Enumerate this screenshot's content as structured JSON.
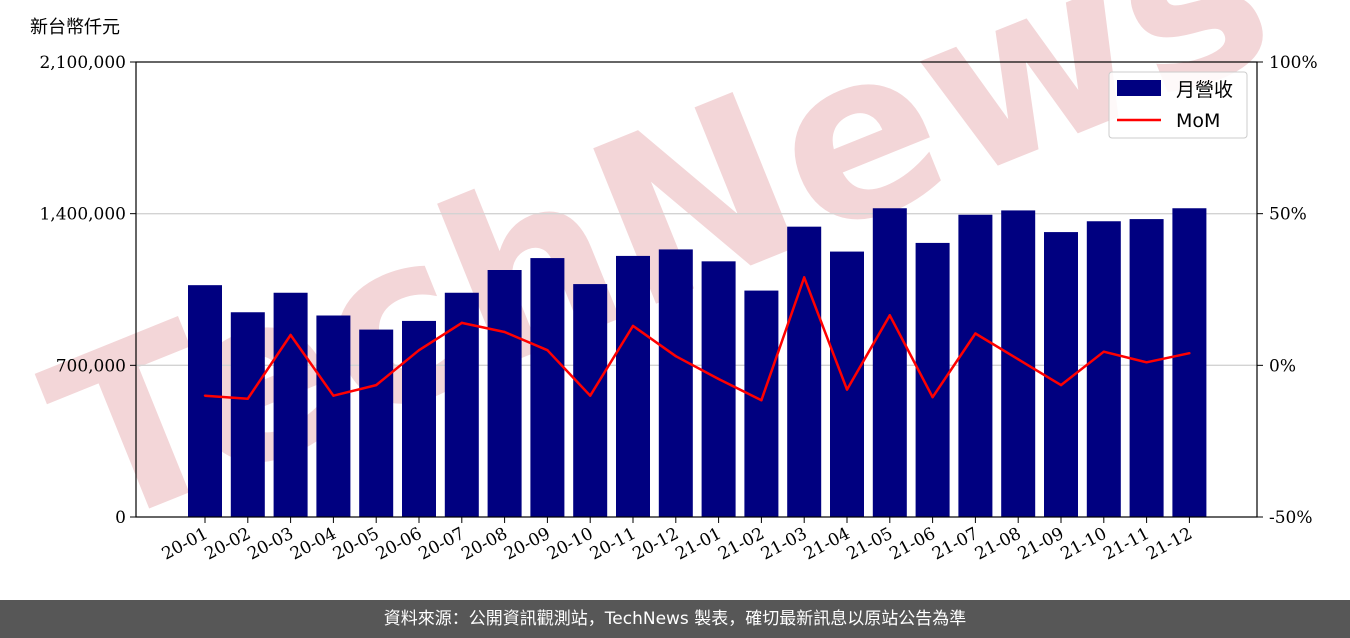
{
  "footer": {
    "source_text": "資料來源：公開資訊觀測站，TechNews 製表，確切最新訊息以原站公告為準"
  },
  "watermark": {
    "text": "TechNews",
    "color": "#f3d6d8"
  },
  "colors": {
    "bar": "#000080",
    "line": "#ff0000",
    "grid": "#d3d3d3"
  },
  "chart_data": {
    "type": "bar",
    "title": "",
    "xlabel": "",
    "ylabel": "新台幣仟元",
    "y2label": "",
    "grid": "horizontal",
    "legend_position": "top-right",
    "ylim": [
      0,
      2100000
    ],
    "y_ticks": [
      "0",
      "700,000",
      "1,400,000",
      "2,100,000"
    ],
    "y2lim": [
      -50,
      100
    ],
    "y2_ticks": [
      "-50%",
      "0%",
      "50%",
      "100%"
    ],
    "categories": [
      "20-01",
      "20-02",
      "20-03",
      "20-04",
      "20-05",
      "20-06",
      "20-07",
      "20-08",
      "20-09",
      "20-10",
      "20-11",
      "20-12",
      "21-01",
      "21-02",
      "21-03",
      "21-04",
      "21-05",
      "21-06",
      "21-07",
      "21-08",
      "21-09",
      "21-10",
      "21-11",
      "21-12"
    ],
    "series": [
      {
        "name": "月營收",
        "type": "bar",
        "axis": "left",
        "values": [
          1070000,
          945000,
          1035000,
          930000,
          865000,
          905000,
          1035000,
          1140000,
          1195000,
          1075000,
          1205000,
          1235000,
          1180000,
          1045000,
          1340000,
          1225000,
          1425000,
          1265000,
          1395000,
          1415000,
          1315000,
          1365000,
          1375000,
          1425000
        ]
      },
      {
        "name": "MoM",
        "type": "line",
        "axis": "right",
        "values": [
          -10,
          -11,
          10,
          -10,
          -6.5,
          5,
          14,
          11,
          5,
          -10,
          13,
          3,
          -4.5,
          -11.5,
          29,
          -8,
          16.5,
          -10.5,
          10.5,
          2,
          -6.5,
          4.5,
          1,
          4
        ]
      }
    ]
  }
}
